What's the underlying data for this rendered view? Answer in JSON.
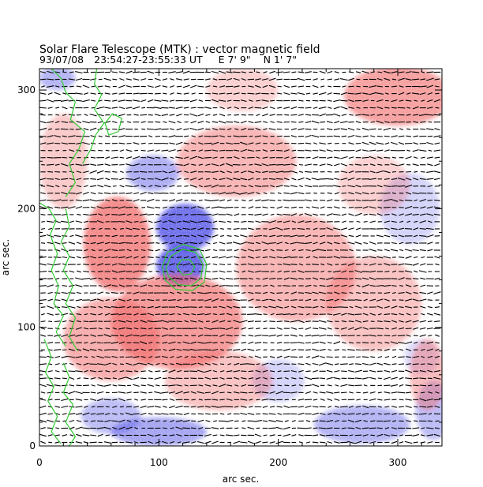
{
  "chart_data": {
    "type": "heatmap",
    "title": "Solar Flare Telescope (MTK) : vector magnetic field",
    "subtitle": {
      "date": "93/07/08",
      "time_range": "23:54:27-23:55:33 UT",
      "position_ew": "E 7' 9\"",
      "position_ns": "N 1' 7\""
    },
    "xlabel": "arc sec.",
    "ylabel": "arc sec.",
    "xlim": [
      0,
      337
    ],
    "ylim": [
      0,
      318
    ],
    "xticks": [
      0,
      100,
      200,
      300
    ],
    "yticks": [
      0,
      100,
      200,
      300
    ],
    "x_minor_step": 20,
    "y_minor_step": 20,
    "colors": {
      "positive_polarity": "#f05a5a",
      "negative_polarity": "#4a4ae6",
      "background": "#ffffff",
      "vectors": "#000000",
      "contours": "#33cc33"
    },
    "field_regions": [
      {
        "polarity": "negative",
        "cx": 122,
        "cy": 184,
        "rx": 24,
        "ry": 20,
        "strength": 0.95
      },
      {
        "polarity": "negative",
        "cx": 118,
        "cy": 152,
        "rx": 20,
        "ry": 17,
        "strength": 1.0
      },
      {
        "polarity": "negative",
        "cx": 95,
        "cy": 230,
        "rx": 22,
        "ry": 15,
        "strength": 0.55
      },
      {
        "polarity": "negative",
        "cx": 60,
        "cy": 25,
        "rx": 25,
        "ry": 15,
        "strength": 0.45
      },
      {
        "polarity": "negative",
        "cx": 100,
        "cy": 12,
        "rx": 40,
        "ry": 12,
        "strength": 0.6
      },
      {
        "polarity": "negative",
        "cx": 270,
        "cy": 18,
        "rx": 40,
        "ry": 16,
        "strength": 0.5
      },
      {
        "polarity": "negative",
        "cx": 330,
        "cy": 30,
        "rx": 15,
        "ry": 25,
        "strength": 0.45
      },
      {
        "polarity": "negative",
        "cx": 200,
        "cy": 55,
        "rx": 22,
        "ry": 18,
        "strength": 0.3
      },
      {
        "polarity": "negative",
        "cx": 310,
        "cy": 200,
        "rx": 25,
        "ry": 30,
        "strength": 0.3
      },
      {
        "polarity": "negative",
        "cx": 15,
        "cy": 310,
        "rx": 15,
        "ry": 10,
        "strength": 0.5
      },
      {
        "polarity": "negative",
        "cx": 320,
        "cy": 75,
        "rx": 15,
        "ry": 15,
        "strength": 0.25
      },
      {
        "polarity": "positive",
        "cx": 65,
        "cy": 170,
        "rx": 28,
        "ry": 40,
        "strength": 0.85
      },
      {
        "polarity": "positive",
        "cx": 115,
        "cy": 105,
        "rx": 55,
        "ry": 40,
        "strength": 0.75
      },
      {
        "polarity": "positive",
        "cx": 60,
        "cy": 90,
        "rx": 40,
        "ry": 35,
        "strength": 0.6
      },
      {
        "polarity": "positive",
        "cx": 215,
        "cy": 150,
        "rx": 50,
        "ry": 45,
        "strength": 0.55
      },
      {
        "polarity": "positive",
        "cx": 165,
        "cy": 240,
        "rx": 50,
        "ry": 30,
        "strength": 0.55
      },
      {
        "polarity": "positive",
        "cx": 300,
        "cy": 295,
        "rx": 45,
        "ry": 25,
        "strength": 0.7
      },
      {
        "polarity": "positive",
        "cx": 280,
        "cy": 120,
        "rx": 40,
        "ry": 40,
        "strength": 0.45
      },
      {
        "polarity": "positive",
        "cx": 150,
        "cy": 55,
        "rx": 45,
        "ry": 25,
        "strength": 0.45
      },
      {
        "polarity": "positive",
        "cx": 325,
        "cy": 60,
        "rx": 15,
        "ry": 30,
        "strength": 0.5
      },
      {
        "polarity": "positive",
        "cx": 170,
        "cy": 300,
        "rx": 30,
        "ry": 18,
        "strength": 0.35
      },
      {
        "polarity": "positive",
        "cx": 20,
        "cy": 240,
        "rx": 20,
        "ry": 40,
        "strength": 0.4
      },
      {
        "polarity": "positive",
        "cx": 280,
        "cy": 220,
        "rx": 30,
        "ry": 25,
        "strength": 0.35
      }
    ],
    "vector_field": {
      "grid_step": 6,
      "mean_angle_deg": 0,
      "length": 5
    },
    "contours": [
      {
        "name": "sunspot-umbra-contour",
        "points": [
          [
            106,
            150
          ],
          [
            110,
            160
          ],
          [
            120,
            166
          ],
          [
            131,
            163
          ],
          [
            137,
            153
          ],
          [
            135,
            141
          ],
          [
            127,
            135
          ],
          [
            116,
            136
          ],
          [
            108,
            143
          ],
          [
            106,
            150
          ]
        ]
      },
      {
        "name": "sunspot-inner-contour",
        "points": [
          [
            115,
            151
          ],
          [
            119,
            157
          ],
          [
            126,
            157
          ],
          [
            130,
            151
          ],
          [
            127,
            145
          ],
          [
            120,
            144
          ],
          [
            115,
            151
          ]
        ]
      },
      {
        "name": "sunspot-penumbra-contour",
        "points": [
          [
            103,
            151
          ],
          [
            107,
            163
          ],
          [
            120,
            170
          ],
          [
            134,
            166
          ],
          [
            140,
            153
          ],
          [
            138,
            138
          ],
          [
            128,
            131
          ],
          [
            114,
            132
          ],
          [
            105,
            140
          ],
          [
            103,
            151
          ]
        ]
      },
      {
        "name": "plage-contour-upper-left",
        "points": [
          [
            10,
            318
          ],
          [
            18,
            310
          ],
          [
            22,
            298
          ],
          [
            30,
            290
          ],
          [
            26,
            275
          ],
          [
            38,
            265
          ],
          [
            33,
            250
          ],
          [
            25,
            238
          ],
          [
            30,
            222
          ],
          [
            22,
            210
          ]
        ]
      },
      {
        "name": "plage-contour-upper-right",
        "points": [
          [
            48,
            318
          ],
          [
            46,
            305
          ],
          [
            52,
            296
          ],
          [
            46,
            284
          ],
          [
            54,
            272
          ],
          [
            47,
            262
          ],
          [
            43,
            250
          ],
          [
            36,
            238
          ]
        ]
      },
      {
        "name": "plage-contour-small-loop",
        "points": [
          [
            55,
            272
          ],
          [
            61,
            280
          ],
          [
            69,
            276
          ],
          [
            66,
            265
          ],
          [
            58,
            262
          ],
          [
            55,
            272
          ]
        ]
      },
      {
        "name": "plage-contour-mid-left",
        "points": [
          [
            0,
            205
          ],
          [
            8,
            200
          ],
          [
            14,
            190
          ],
          [
            9,
            178
          ],
          [
            15,
            162
          ],
          [
            10,
            148
          ],
          [
            16,
            135
          ],
          [
            12,
            120
          ],
          [
            20,
            110
          ],
          [
            14,
            96
          ],
          [
            22,
            84
          ]
        ]
      },
      {
        "name": "plage-contour-mid-right",
        "points": [
          [
            22,
            200
          ],
          [
            25,
            185
          ],
          [
            18,
            172
          ],
          [
            25,
            160
          ],
          [
            20,
            148
          ],
          [
            28,
            135
          ],
          [
            22,
            120
          ],
          [
            30,
            108
          ],
          [
            25,
            92
          ],
          [
            32,
            80
          ]
        ]
      },
      {
        "name": "plage-contour-lower",
        "points": [
          [
            4,
            90
          ],
          [
            10,
            75
          ],
          [
            5,
            62
          ],
          [
            12,
            50
          ],
          [
            7,
            38
          ],
          [
            15,
            25
          ],
          [
            10,
            12
          ],
          [
            18,
            2
          ]
        ]
      },
      {
        "name": "plage-contour-lower-right",
        "points": [
          [
            20,
            70
          ],
          [
            25,
            58
          ],
          [
            20,
            45
          ],
          [
            28,
            35
          ],
          [
            22,
            20
          ],
          [
            30,
            8
          ],
          [
            25,
            0
          ]
        ]
      }
    ]
  }
}
